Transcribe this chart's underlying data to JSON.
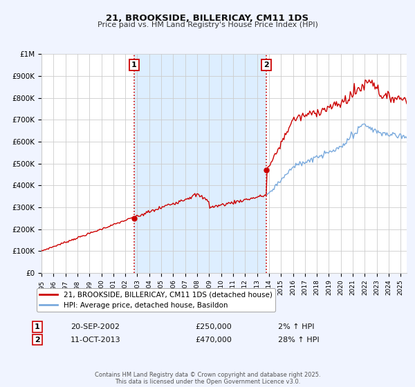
{
  "title": "21, BROOKSIDE, BILLERICAY, CM11 1DS",
  "subtitle": "Price paid vs. HM Land Registry's House Price Index (HPI)",
  "bg_color": "#f0f4ff",
  "plot_bg_color": "#ffffff",
  "grid_color": "#cccccc",
  "red_color": "#cc0000",
  "blue_color": "#7aaadd",
  "marker1_date": 2002.72,
  "marker1_value": 250000,
  "marker2_date": 2013.78,
  "marker2_value": 470000,
  "xmin": 1995,
  "xmax": 2025.5,
  "ymin": 0,
  "ymax": 1000000,
  "yticks": [
    0,
    100000,
    200000,
    300000,
    400000,
    500000,
    600000,
    700000,
    800000,
    900000,
    1000000
  ],
  "ytick_labels": [
    "£0",
    "£100K",
    "£200K",
    "£300K",
    "£400K",
    "£500K",
    "£600K",
    "£700K",
    "£800K",
    "£900K",
    "£1M"
  ],
  "xticks": [
    1995,
    1996,
    1997,
    1998,
    1999,
    2000,
    2001,
    2002,
    2003,
    2004,
    2005,
    2006,
    2007,
    2008,
    2009,
    2010,
    2011,
    2012,
    2013,
    2014,
    2015,
    2016,
    2017,
    2018,
    2019,
    2020,
    2021,
    2022,
    2023,
    2024,
    2025
  ],
  "legend_entries": [
    "21, BROOKSIDE, BILLERICAY, CM11 1DS (detached house)",
    "HPI: Average price, detached house, Basildon"
  ],
  "table_rows": [
    {
      "num": "1",
      "date": "20-SEP-2002",
      "price": "£250,000",
      "change": "2% ↑ HPI"
    },
    {
      "num": "2",
      "date": "11-OCT-2013",
      "price": "£470,000",
      "change": "28% ↑ HPI"
    }
  ],
  "footnote1": "Contains HM Land Registry data © Crown copyright and database right 2025.",
  "footnote2": "This data is licensed under the Open Government Licence v3.0.",
  "vline1_x": 2002.72,
  "vline2_x": 2013.78,
  "shade_xmin": 2002.72,
  "shade_xmax": 2013.78,
  "shade_color": "#ddeeff"
}
